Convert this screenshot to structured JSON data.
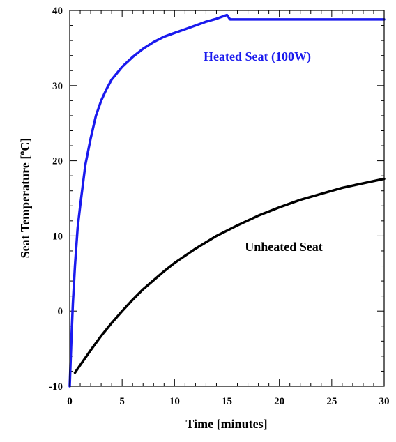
{
  "chart_data": {
    "type": "line",
    "title": "",
    "xlabel": "Time [minutes]",
    "ylabel_main": "Seat Temperature [",
    "ylabel_sup": "o",
    "ylabel_end": "C]",
    "xlim": [
      0,
      30
    ],
    "ylim": [
      -10,
      40
    ],
    "xticks": [
      0,
      5,
      10,
      15,
      20,
      25,
      30
    ],
    "yticks": [
      -10,
      0,
      10,
      20,
      30,
      40
    ],
    "xtick_labels": [
      "0",
      "5",
      "10",
      "15",
      "20",
      "25",
      "30"
    ],
    "ytick_labels": [
      "-10",
      "0",
      "10",
      "20",
      "30",
      "40"
    ],
    "x_minor_step": 1,
    "y_minor_step": 2,
    "grid": false,
    "series": [
      {
        "color": "#1a1aee",
        "label": "Heated Seat (100W)",
        "x": [
          0,
          0.15,
          0.3,
          0.5,
          0.75,
          1,
          1.5,
          2,
          2.5,
          3,
          3.5,
          4,
          5,
          6,
          7,
          8,
          9,
          10,
          11,
          12,
          13,
          14,
          15,
          15.3,
          16,
          18,
          20,
          22,
          24,
          26,
          28,
          30
        ],
        "y": [
          -10,
          -4,
          1,
          6,
          11,
          14,
          19.5,
          23,
          26,
          28,
          29.5,
          30.8,
          32.5,
          33.8,
          34.9,
          35.8,
          36.5,
          37,
          37.5,
          38,
          38.5,
          38.9,
          39.4,
          38.8,
          38.8,
          38.8,
          38.8,
          38.8,
          38.8,
          38.8,
          38.8,
          38.8
        ]
      },
      {
        "color": "#000000",
        "label": "Unheated Seat",
        "x": [
          0.5,
          1,
          2,
          3,
          4,
          5,
          6,
          7,
          8,
          9,
          10,
          12,
          14,
          16,
          18,
          20,
          22,
          24,
          26,
          28,
          30
        ],
        "y": [
          -8.2,
          -7.2,
          -5.2,
          -3.3,
          -1.6,
          0,
          1.5,
          2.9,
          4.1,
          5.3,
          6.4,
          8.3,
          10,
          11.4,
          12.7,
          13.8,
          14.8,
          15.6,
          16.4,
          17,
          17.6
        ]
      }
    ]
  }
}
